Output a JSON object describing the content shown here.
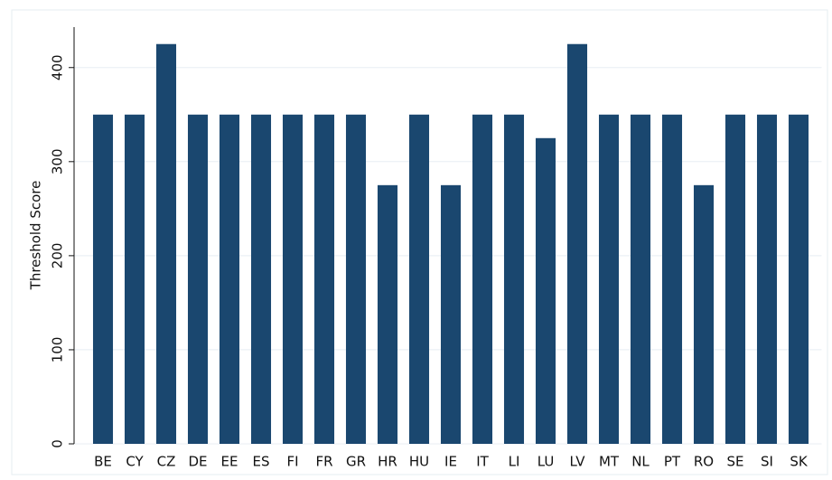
{
  "chart_data": {
    "type": "bar",
    "ylabel": "Threshold Score",
    "categories": [
      "BE",
      "CY",
      "CZ",
      "DE",
      "EE",
      "ES",
      "FI",
      "FR",
      "GR",
      "HR",
      "HU",
      "IE",
      "IT",
      "LI",
      "LU",
      "LV",
      "MT",
      "NL",
      "PT",
      "RO",
      "SE",
      "SI",
      "SK"
    ],
    "values": [
      350,
      350,
      425,
      350,
      350,
      350,
      350,
      350,
      350,
      275,
      350,
      275,
      350,
      350,
      325,
      425,
      350,
      350,
      350,
      275,
      350,
      350,
      350
    ],
    "color": "#1a476f",
    "ylim": [
      0,
      443
    ],
    "yticks": [
      0,
      100,
      200,
      300,
      400
    ],
    "grid": true
  }
}
